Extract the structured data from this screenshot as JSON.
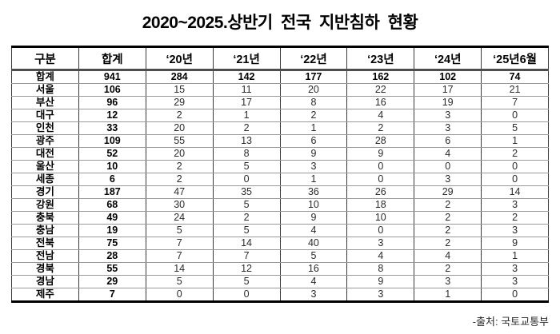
{
  "title": "2020~2025.상반기 전국 지반침하 현황",
  "source": "-출처: 국토교통부",
  "colors": {
    "outer_border": "#000000",
    "header_rule": "#4d4d4d",
    "row_line": "#999999",
    "text": "#000000"
  },
  "table": {
    "headers": [
      "구분",
      "합계",
      "‘20년",
      "‘21년",
      "‘22년",
      "‘23년",
      "‘24년",
      "‘25년6월"
    ],
    "rows": [
      [
        "합계",
        "941",
        "284",
        "142",
        "177",
        "162",
        "102",
        "74"
      ],
      [
        "서울",
        "106",
        "15",
        "11",
        "20",
        "22",
        "17",
        "21"
      ],
      [
        "부산",
        "96",
        "29",
        "17",
        "8",
        "16",
        "19",
        "7"
      ],
      [
        "대구",
        "12",
        "2",
        "1",
        "2",
        "4",
        "3",
        "0"
      ],
      [
        "인천",
        "33",
        "20",
        "2",
        "1",
        "2",
        "3",
        "5"
      ],
      [
        "광주",
        "109",
        "55",
        "13",
        "6",
        "28",
        "6",
        "1"
      ],
      [
        "대전",
        "52",
        "20",
        "8",
        "9",
        "9",
        "4",
        "2"
      ],
      [
        "울산",
        "10",
        "2",
        "5",
        "3",
        "0",
        "0",
        "0"
      ],
      [
        "세종",
        "6",
        "2",
        "0",
        "1",
        "0",
        "3",
        "0"
      ],
      [
        "경기",
        "187",
        "47",
        "35",
        "36",
        "26",
        "29",
        "14"
      ],
      [
        "강원",
        "68",
        "30",
        "5",
        "10",
        "18",
        "2",
        "3"
      ],
      [
        "충북",
        "49",
        "24",
        "2",
        "9",
        "10",
        "2",
        "2"
      ],
      [
        "충남",
        "19",
        "5",
        "5",
        "4",
        "0",
        "2",
        "3"
      ],
      [
        "전북",
        "75",
        "7",
        "14",
        "40",
        "3",
        "2",
        "9"
      ],
      [
        "전남",
        "28",
        "7",
        "7",
        "5",
        "4",
        "4",
        "1"
      ],
      [
        "경북",
        "55",
        "14",
        "12",
        "16",
        "8",
        "2",
        "3"
      ],
      [
        "경남",
        "29",
        "5",
        "5",
        "4",
        "9",
        "3",
        "3"
      ],
      [
        "제주",
        "7",
        "0",
        "0",
        "3",
        "3",
        "1",
        "0"
      ]
    ]
  }
}
